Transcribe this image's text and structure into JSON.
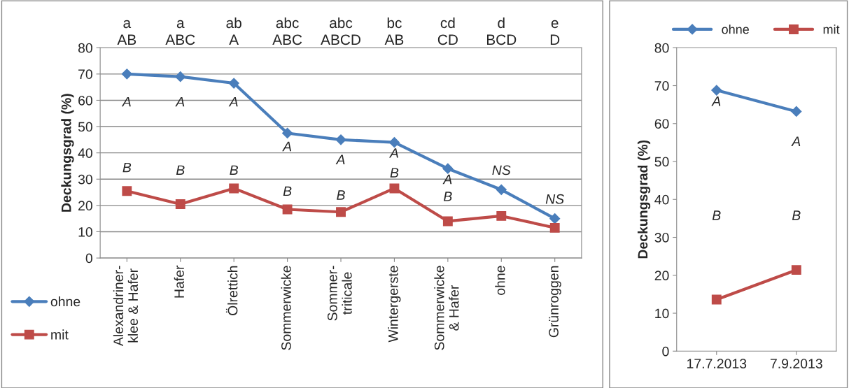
{
  "chart_data": [
    {
      "type": "line",
      "ylabel": "Deckungsgrad (%)",
      "categories": [
        "Alexandriner-\nklee & Hafer",
        "Hafer",
        "Ölrettich",
        "Sommerwicke",
        "Sommer-\ntriticale",
        "Wintergerste",
        "Sommerwicke\n& Hafer",
        "ohne",
        "Grünroggen"
      ],
      "series": [
        {
          "name": "ohne",
          "color": "#4a7ebb",
          "marker": "diamond",
          "values": [
            70,
            69,
            66.5,
            47.5,
            45,
            44,
            34,
            26,
            15
          ]
        },
        {
          "name": "mit",
          "color": "#be4b48",
          "marker": "square",
          "values": [
            25.5,
            20.5,
            26.5,
            18.5,
            17.5,
            26.5,
            14,
            16,
            11.5
          ]
        }
      ],
      "ylim": [
        0,
        80
      ],
      "yticks": [
        0,
        10,
        20,
        30,
        40,
        50,
        60,
        70,
        80
      ],
      "grid": "y",
      "legend": "bottom left",
      "annotations": [
        "a\nAB",
        "a\nABC",
        "ab\nA",
        "abc\nABC",
        "abc\nABCD",
        "bc\nAB",
        "cd\nCD",
        "d\nBCD",
        "e\nD",
        "A",
        "A",
        "A",
        "A",
        "A",
        "A",
        "A",
        "NS",
        "NS",
        "B",
        "B",
        "B",
        "B",
        "B",
        "B",
        "B"
      ]
    },
    {
      "type": "line",
      "ylabel": "Deckungsgrad (%)",
      "categories": [
        "17.7.2013",
        "7.9.2013"
      ],
      "series": [
        {
          "name": "ohne",
          "color": "#4a7ebb",
          "marker": "diamond",
          "values": [
            68.8,
            63.2
          ]
        },
        {
          "name": "mit",
          "color": "#be4b48",
          "marker": "square",
          "values": [
            13.6,
            21.4
          ]
        }
      ],
      "ylim": [
        0,
        80
      ],
      "yticks": [
        0,
        10,
        20,
        30,
        40,
        50,
        60,
        70,
        80
      ],
      "grid": false,
      "legend": "top",
      "annotations": [
        "A",
        "A",
        "B",
        "B"
      ]
    }
  ]
}
